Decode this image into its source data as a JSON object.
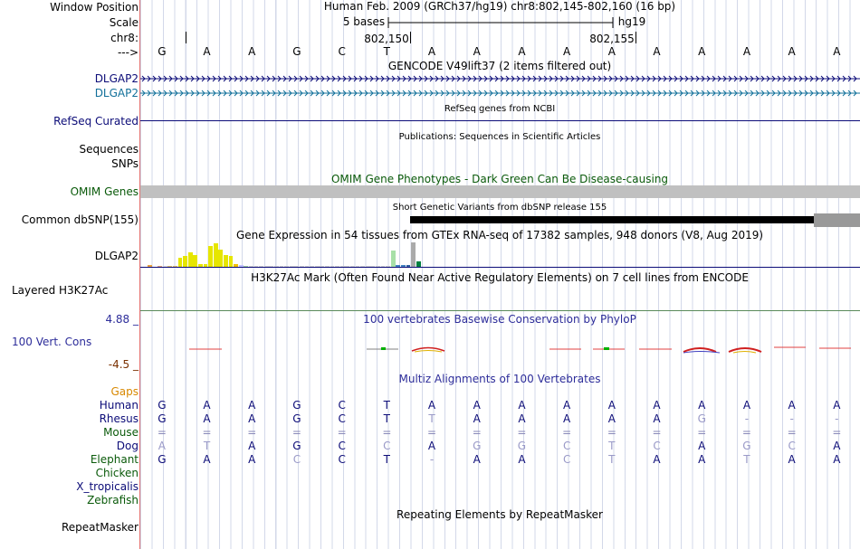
{
  "header": {
    "window_position_label": "Window Position",
    "scale_label": "Scale",
    "chrom_label": "chr8:",
    "arrow_label": "--->",
    "assembly_position": "Human Feb. 2009 (GRCh37/hg19)    chr8:802,145-802,160 (16 bp)",
    "scale_text": "5 bases",
    "scale_db": "hg19",
    "coord_1": "802,150",
    "coord_2": "802,155",
    "bases": [
      "G",
      "A",
      "A",
      "G",
      "C",
      "T",
      "A",
      "A",
      "A",
      "A",
      "A",
      "A",
      "A",
      "A",
      "A",
      "A"
    ]
  },
  "tracks": {
    "gencode": {
      "title": "GENCODE V49lift37 (2 items filtered out)",
      "rows": [
        "DLGAP2",
        "DLGAP2"
      ]
    },
    "refseq": {
      "label": "RefSeq Curated",
      "title": "RefSeq genes from NCBI"
    },
    "publications": {
      "title": "Publications: Sequences in Scientific Articles",
      "label1": "Sequences",
      "label2": "SNPs"
    },
    "omim": {
      "title": "OMIM Gene Phenotypes - Dark Green Can Be Disease-causing",
      "label": "OMIM Genes"
    },
    "dbsnp": {
      "title": "Short Genetic Variants from dbSNP release 155",
      "label": "Common dbSNP(155)"
    },
    "gtex": {
      "title": "Gene Expression in 54 tissues from GTEx RNA-seq of 17382 samples, 948 donors (V8, Aug 2019)",
      "label": "DLGAP2",
      "bars": [
        {
          "h": 0.06,
          "c": "#e8a040"
        },
        {
          "h": 0.0,
          "c": "#ffffff"
        },
        {
          "h": 0.04,
          "c": "#e0a080"
        },
        {
          "h": 0.03,
          "c": "#e0e0e0"
        },
        {
          "h": 0.04,
          "c": "#e0c070"
        },
        {
          "h": 0.05,
          "c": "#e0c070"
        },
        {
          "h": 0.36,
          "c": "#e6e600"
        },
        {
          "h": 0.46,
          "c": "#e6e600"
        },
        {
          "h": 0.6,
          "c": "#e6e600"
        },
        {
          "h": 0.48,
          "c": "#e6e600"
        },
        {
          "h": 0.1,
          "c": "#e6e600"
        },
        {
          "h": 0.1,
          "c": "#e6e600"
        },
        {
          "h": 0.86,
          "c": "#e6e600"
        },
        {
          "h": 0.96,
          "c": "#e6e600"
        },
        {
          "h": 0.72,
          "c": "#e6e600"
        },
        {
          "h": 0.48,
          "c": "#e6e600"
        },
        {
          "h": 0.44,
          "c": "#e6e600"
        },
        {
          "h": 0.1,
          "c": "#f0c000"
        },
        {
          "h": 0.08,
          "c": "#c0c0ff"
        },
        {
          "h": 0.05,
          "c": "#a0d0a0"
        },
        {
          "h": 0.04,
          "c": "#d0d0d0"
        },
        {
          "h": 0.04,
          "c": "#d0d0d0"
        },
        {
          "h": 0.03,
          "c": "#d0d0d0"
        },
        {
          "h": 0.04,
          "c": "#d0d0d0"
        },
        {
          "h": 0.04,
          "c": "#d0d0d0"
        },
        {
          "h": 0.03,
          "c": "#d0d0d0"
        },
        {
          "h": 0.03,
          "c": "#d0d0d0"
        },
        {
          "h": 0.03,
          "c": "#d0d0d0"
        },
        {
          "h": 0.03,
          "c": "#d0d0d0"
        },
        {
          "h": 0.03,
          "c": "#d0d0d0"
        },
        {
          "h": 0.03,
          "c": "#d0d0d0"
        },
        {
          "h": 0.03,
          "c": "#d0d0d0"
        },
        {
          "h": 0.03,
          "c": "#d0d0d0"
        },
        {
          "h": 0.03,
          "c": "#d0d0d0"
        },
        {
          "h": 0.04,
          "c": "#d0d0d0"
        },
        {
          "h": 0.03,
          "c": "#d0d0d0"
        },
        {
          "h": 0.04,
          "c": "#d0d0d0"
        },
        {
          "h": 0.03,
          "c": "#d0d0d0"
        },
        {
          "h": 0.03,
          "c": "#d0d0d0"
        },
        {
          "h": 0.04,
          "c": "#d0d0d0"
        },
        {
          "h": 0.03,
          "c": "#d0d0d0"
        },
        {
          "h": 0.03,
          "c": "#d0d0d0"
        },
        {
          "h": 0.04,
          "c": "#d0d0d0"
        },
        {
          "h": 0.03,
          "c": "#d0d0d0"
        },
        {
          "h": 0.03,
          "c": "#d0d0d0"
        },
        {
          "h": 0.03,
          "c": "#d0d0d0"
        },
        {
          "h": 0.04,
          "c": "#d0d0d0"
        },
        {
          "h": 0.04,
          "c": "#d0d0d0"
        },
        {
          "h": 0.66,
          "c": "#a8e0a8"
        },
        {
          "h": 0.06,
          "c": "#4080c0"
        },
        {
          "h": 0.06,
          "c": "#4080c0"
        },
        {
          "h": 0.08,
          "c": "#3060a0"
        },
        {
          "h": 1.0,
          "c": "#aaaaaa"
        },
        {
          "h": 0.22,
          "c": "#008040"
        }
      ]
    },
    "h3k27ac": {
      "title": "H3K27Ac Mark (Often Found Near Active Regulatory Elements) on 7 cell lines from ENCODE",
      "label": "Layered H3K27Ac"
    },
    "cons": {
      "title": "100 vertebrates Basewise Conservation by PhyloP",
      "label": "100 Vert. Cons",
      "ymax": "4.88 _",
      "ymin": "-4.5 _"
    },
    "multiz": {
      "title": "Multiz Alignments of 100 Vertebrates",
      "gaps_label": "Gaps",
      "species": [
        {
          "name": "Human",
          "bases": [
            "G",
            "A",
            "A",
            "G",
            "C",
            "T",
            "A",
            "A",
            "A",
            "A",
            "A",
            "A",
            "A",
            "A",
            "A",
            "A"
          ],
          "light": []
        },
        {
          "name": "Rhesus",
          "bases": [
            "G",
            "A",
            "A",
            "G",
            "C",
            "T",
            "T",
            "A",
            "A",
            "A",
            "A",
            "A",
            "G",
            "-",
            "-",
            "-"
          ],
          "light": [
            6,
            12,
            13,
            14,
            15
          ]
        },
        {
          "name": "Mouse",
          "bases": [
            "=",
            "=",
            "=",
            "=",
            "=",
            "=",
            "=",
            "=",
            "=",
            "=",
            "=",
            "=",
            "=",
            "=",
            "=",
            "="
          ],
          "light": []
        },
        {
          "name": "Dog",
          "bases": [
            "A",
            "T",
            "A",
            "G",
            "C",
            "C",
            "A",
            "G",
            "G",
            "C",
            "T",
            "C",
            "A",
            "G",
            "C",
            "A"
          ],
          "light": [
            0,
            1,
            5,
            7,
            8,
            9,
            10,
            11,
            13,
            14
          ]
        },
        {
          "name": "Elephant",
          "bases": [
            "G",
            "A",
            "A",
            "C",
            "C",
            "T",
            "-",
            "A",
            "A",
            "C",
            "T",
            "A",
            "A",
            "T",
            "A",
            "A"
          ],
          "light": [
            3,
            6,
            9,
            10,
            13
          ]
        },
        {
          "name": "Chicken",
          "bases": [],
          "light": []
        },
        {
          "name": "X_tropicalis",
          "bases": [],
          "light": []
        },
        {
          "name": "Zebrafish",
          "bases": [],
          "light": []
        }
      ]
    },
    "repeatmasker": {
      "title": "Repeating Elements by RepeatMasker",
      "label": "RepeatMasker"
    }
  },
  "colors": {
    "navy": "#0c0c78",
    "omim_bar": "#c0c0c0",
    "snp_bar": "#000000"
  }
}
